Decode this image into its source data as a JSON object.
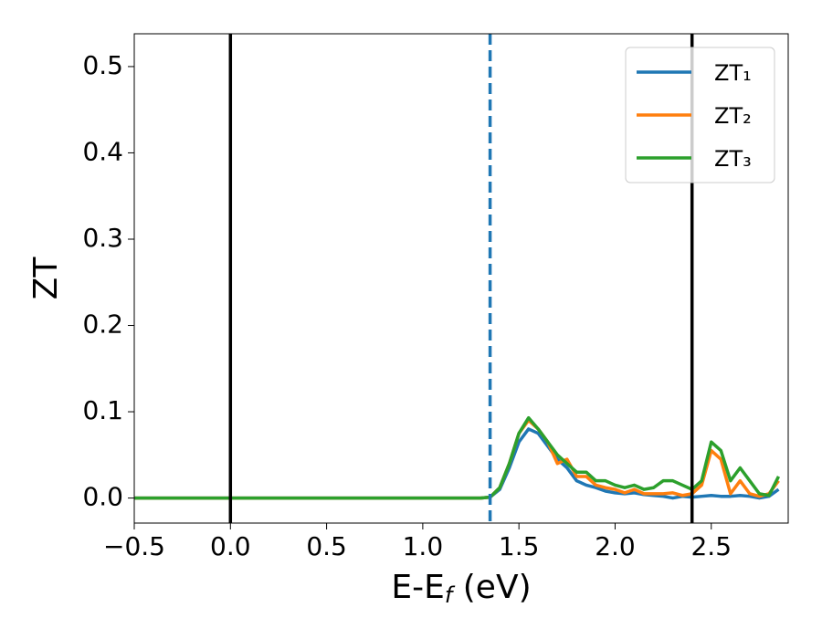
{
  "chart_data": {
    "type": "line",
    "xlabel": [
      "E-E",
      "f",
      " (eV)"
    ],
    "ylabel": "ZT",
    "x": [
      -0.5,
      0,
      0.5,
      1.0,
      1.3,
      1.35,
      1.4,
      1.45,
      1.5,
      1.55,
      1.6,
      1.65,
      1.7,
      1.75,
      1.8,
      1.85,
      1.9,
      1.95,
      2.0,
      2.05,
      2.1,
      2.15,
      2.2,
      2.25,
      2.3,
      2.35,
      2.4,
      2.45,
      2.5,
      2.55,
      2.6,
      2.65,
      2.7,
      2.75,
      2.8,
      2.85
    ],
    "series": [
      {
        "name": "ZT₁",
        "color": "#1f77b4",
        "values": [
          0,
          0,
          0,
          0,
          0,
          0.001,
          0.01,
          0.035,
          0.065,
          0.08,
          0.075,
          0.06,
          0.045,
          0.035,
          0.02,
          0.015,
          0.012,
          0.008,
          0.006,
          0.005,
          0.006,
          0.004,
          0.003,
          0.002,
          0,
          0.002,
          0.001,
          0.002,
          0.003,
          0.002,
          0.002,
          0.003,
          0.002,
          0,
          0.002,
          0.01
        ]
      },
      {
        "name": "ZT₂",
        "color": "#ff7f0e",
        "values": [
          0,
          0,
          0,
          0,
          0,
          0.001,
          0.012,
          0.04,
          0.075,
          0.09,
          0.08,
          0.065,
          0.04,
          0.045,
          0.025,
          0.025,
          0.015,
          0.012,
          0.01,
          0.006,
          0.01,
          0.005,
          0.005,
          0.005,
          0.006,
          0.003,
          0.005,
          0.015,
          0.055,
          0.045,
          0.005,
          0.02,
          0.005,
          0.002,
          0.005,
          0.02
        ]
      },
      {
        "name": "ZT₃",
        "color": "#2ca02c",
        "values": [
          0,
          0,
          0,
          0,
          0,
          0.001,
          0.012,
          0.04,
          0.075,
          0.093,
          0.08,
          0.065,
          0.05,
          0.04,
          0.03,
          0.03,
          0.02,
          0.02,
          0.015,
          0.012,
          0.015,
          0.01,
          0.012,
          0.02,
          0.02,
          0.015,
          0.01,
          0.02,
          0.065,
          0.055,
          0.02,
          0.035,
          0.02,
          0.005,
          0.003,
          0.025
        ]
      }
    ],
    "vlines": [
      {
        "x": 0,
        "color": "#000000",
        "style": "solid"
      },
      {
        "x": 1.35,
        "color": "#1f77b4",
        "style": "dashed"
      },
      {
        "x": 2.4,
        "color": "#000000",
        "style": "solid"
      }
    ],
    "xlim": [
      -0.5,
      2.9
    ],
    "ylim": [
      -0.029,
      0.538
    ],
    "xticks": [
      {
        "value": -0.5,
        "label": "−0.5"
      },
      {
        "value": 0,
        "label": "0.0"
      },
      0.5,
      {
        "value": 1.0,
        "label": "1.0"
      },
      1.5,
      {
        "value": 2.0,
        "label": "2.0"
      },
      2.5
    ],
    "yticks": [
      {
        "value": 0,
        "label": "0.0"
      },
      0.1,
      0.2,
      0.3,
      0.4,
      0.5
    ],
    "legend": "upper right",
    "grid": false
  }
}
